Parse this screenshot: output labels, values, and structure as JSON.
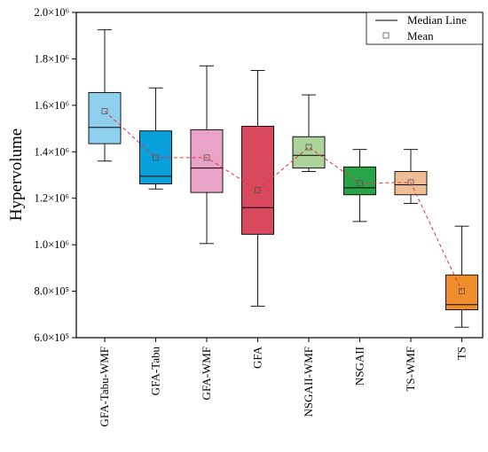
{
  "chart_data": {
    "type": "box",
    "ylabel": "Hypervolume",
    "ylim": [
      600000,
      2000000
    ],
    "yticks": [
      {
        "value": 600000,
        "label": "6.0×10⁵"
      },
      {
        "value": 800000,
        "label": "8.0×10⁵"
      },
      {
        "value": 1000000,
        "label": "1.0×10⁶"
      },
      {
        "value": 1200000,
        "label": "1.2×10⁶"
      },
      {
        "value": 1400000,
        "label": "1.4×10⁶"
      },
      {
        "value": 1600000,
        "label": "1.6×10⁶"
      },
      {
        "value": 1800000,
        "label": "1.8×10⁶"
      },
      {
        "value": 2000000,
        "label": "2.0×10⁶"
      }
    ],
    "legend": {
      "position": "top-right",
      "median_label": "Median Line",
      "mean_label": "Mean"
    },
    "categories": [
      "GFA-Tabu-WMF",
      "GFA-Tabu",
      "GFA-WMF",
      "GFA",
      "NSGAII-WMF",
      "NSGAII",
      "TS-WMF",
      "TS"
    ],
    "boxes": [
      {
        "name": "GFA-Tabu-WMF",
        "color": "#8fd0ef",
        "min": 1360000,
        "q1": 1435000,
        "median": 1505000,
        "q3": 1655000,
        "max": 1925000,
        "mean": 1575000
      },
      {
        "name": "GFA-Tabu",
        "color": "#0aa0dc",
        "min": 1240000,
        "q1": 1262000,
        "median": 1295000,
        "q3": 1490000,
        "max": 1675000,
        "mean": 1375000
      },
      {
        "name": "GFA-WMF",
        "color": "#e9a3c6",
        "min": 1005000,
        "q1": 1225000,
        "median": 1330000,
        "q3": 1495000,
        "max": 1770000,
        "mean": 1375000
      },
      {
        "name": "GFA",
        "color": "#d9495e",
        "min": 735000,
        "q1": 1045000,
        "median": 1160000,
        "q3": 1510000,
        "max": 1750000,
        "mean": 1235000
      },
      {
        "name": "NSGAII-WMF",
        "color": "#acd39c",
        "min": 1315000,
        "q1": 1330000,
        "median": 1385000,
        "q3": 1465000,
        "max": 1645000,
        "mean": 1420000
      },
      {
        "name": "NSGAII",
        "color": "#29a348",
        "min": 1100000,
        "q1": 1215000,
        "median": 1245000,
        "q3": 1335000,
        "max": 1410000,
        "mean": 1265000
      },
      {
        "name": "TS-WMF",
        "color": "#efbe97",
        "min": 1178000,
        "q1": 1215000,
        "median": 1258000,
        "q3": 1315000,
        "max": 1410000,
        "mean": 1268000
      },
      {
        "name": "TS",
        "color": "#ef8c2b",
        "min": 645000,
        "q1": 720000,
        "median": 742000,
        "q3": 870000,
        "max": 1080000,
        "mean": 800000
      }
    ],
    "mean_line_color": "#e8333a"
  }
}
